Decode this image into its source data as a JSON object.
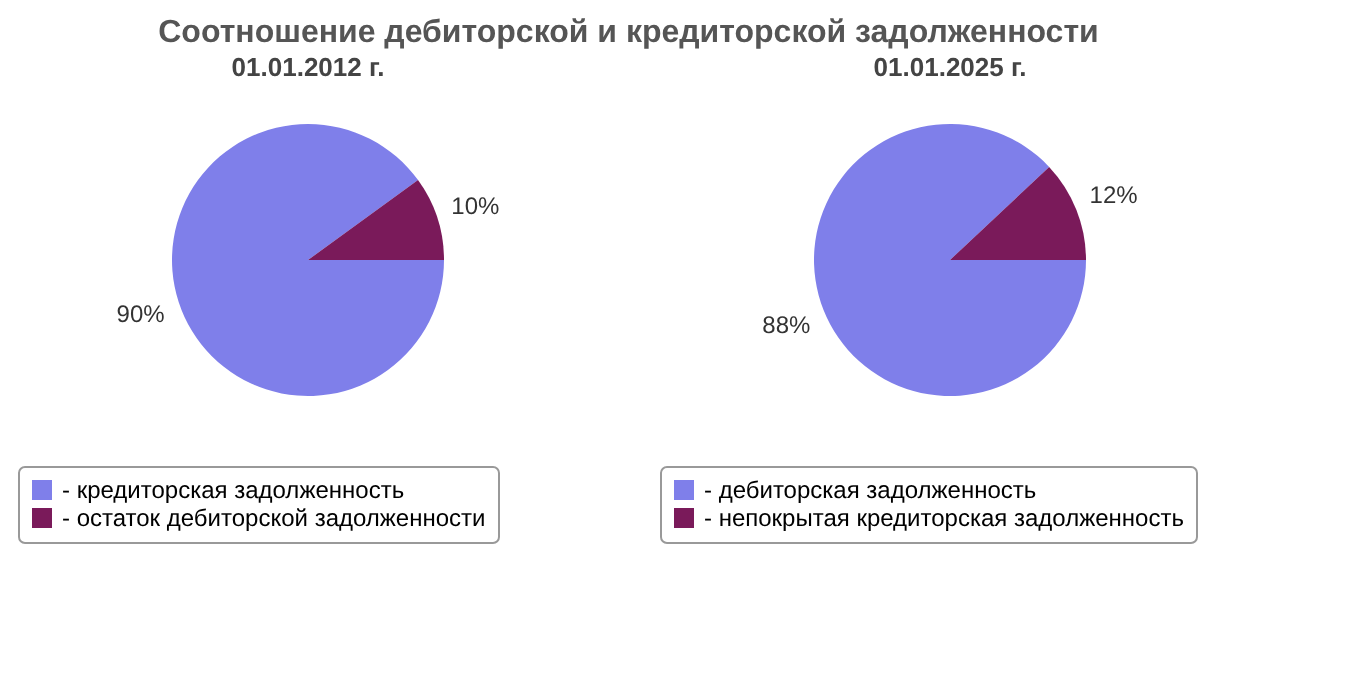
{
  "chart_data": [
    {
      "type": "pie",
      "title": "Соотношение дебиторской и кредиторской задолженности",
      "subtitle": "01.01.2012 г.",
      "categories": [
        "- кредиторская задолженность",
        "- остаток дебиторской задолженности"
      ],
      "values": [
        90,
        10
      ],
      "colors": [
        "#7f7fea",
        "#7a1a5a"
      ],
      "value_labels": [
        "90%",
        "10%"
      ],
      "legend": "bottom"
    },
    {
      "type": "pie",
      "subtitle": "01.01.2025 г.",
      "categories": [
        "- дебиторская задолженность",
        "- непокрытая кредиторская задолженность"
      ],
      "values": [
        88,
        12
      ],
      "colors": [
        "#7f7fea",
        "#7a1a5a"
      ],
      "value_labels": [
        "88%",
        "12%"
      ],
      "legend": "bottom"
    }
  ]
}
